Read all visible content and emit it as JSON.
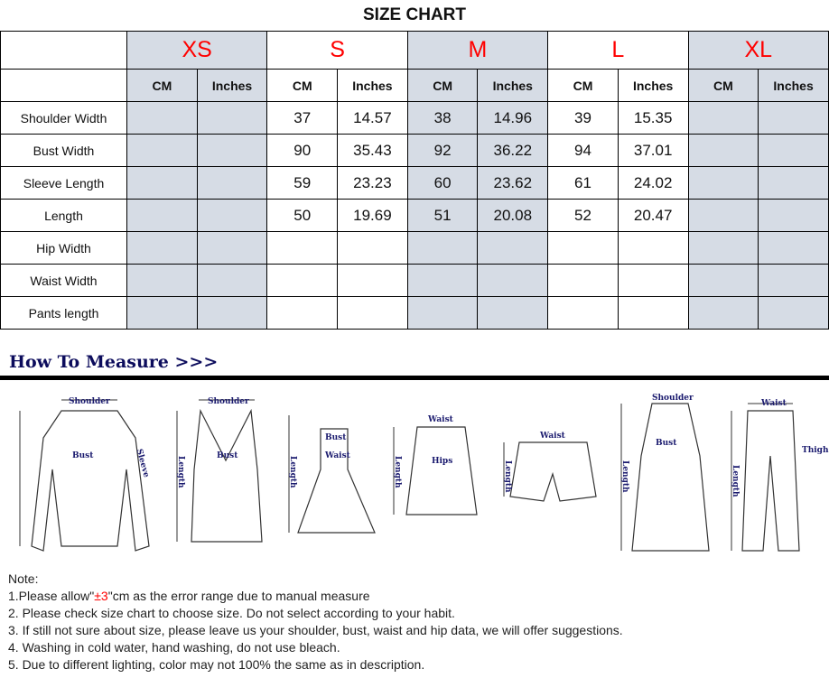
{
  "title": "SIZE CHART",
  "sizes": [
    "XS",
    "S",
    "M",
    "L",
    "XL"
  ],
  "units": [
    "CM",
    "Inches"
  ],
  "rows": [
    {
      "label": "Shoulder Width",
      "values": [
        "",
        "",
        "37",
        "14.57",
        "38",
        "14.96",
        "39",
        "15.35",
        "",
        ""
      ]
    },
    {
      "label": "Bust Width",
      "values": [
        "",
        "",
        "90",
        "35.43",
        "92",
        "36.22",
        "94",
        "37.01",
        "",
        ""
      ]
    },
    {
      "label": "Sleeve Length",
      "values": [
        "",
        "",
        "59",
        "23.23",
        "60",
        "23.62",
        "61",
        "24.02",
        "",
        ""
      ]
    },
    {
      "label": "Length",
      "values": [
        "",
        "",
        "50",
        "19.69",
        "51",
        "20.08",
        "52",
        "20.47",
        "",
        ""
      ]
    },
    {
      "label": "Hip Width",
      "values": [
        "",
        "",
        "",
        "",
        "",
        "",
        "",
        "",
        "",
        ""
      ]
    },
    {
      "label": "Waist Width",
      "values": [
        "",
        "",
        "",
        "",
        "",
        "",
        "",
        "",
        "",
        ""
      ]
    },
    {
      "label": "Pants length",
      "values": [
        "",
        "",
        "",
        "",
        "",
        "",
        "",
        "",
        "",
        ""
      ]
    }
  ],
  "colors": {
    "size_label": "#ff0000",
    "shaded_column": "#d6dce5",
    "heading": "#0c0c5c"
  },
  "how_to_measure": "How To Measure >>>",
  "diagram_labels": {
    "shoulder": "Shoulder",
    "bust": "Bust",
    "sleeve": "Sleeve",
    "length": "Length",
    "waist": "Waist",
    "hips": "Hips",
    "thigh": "Thigh"
  },
  "notes": {
    "heading": "Note:",
    "n1_pre": "1.Please allow\"",
    "n1_red": "±3",
    "n1_post": "\"cm as the error range due to manual measure",
    "n2": "2. Please check size chart to choose size. Do not select according to your habit.",
    "n3": "3. If still not sure about size, please leave us your shoulder, bust, waist and hip data, we will offer suggestions.",
    "n4": "4. Washing in cold water, hand washing, do not use bleach.",
    "n5": "5. Due to different lighting, color may not 100% the same as in description."
  }
}
